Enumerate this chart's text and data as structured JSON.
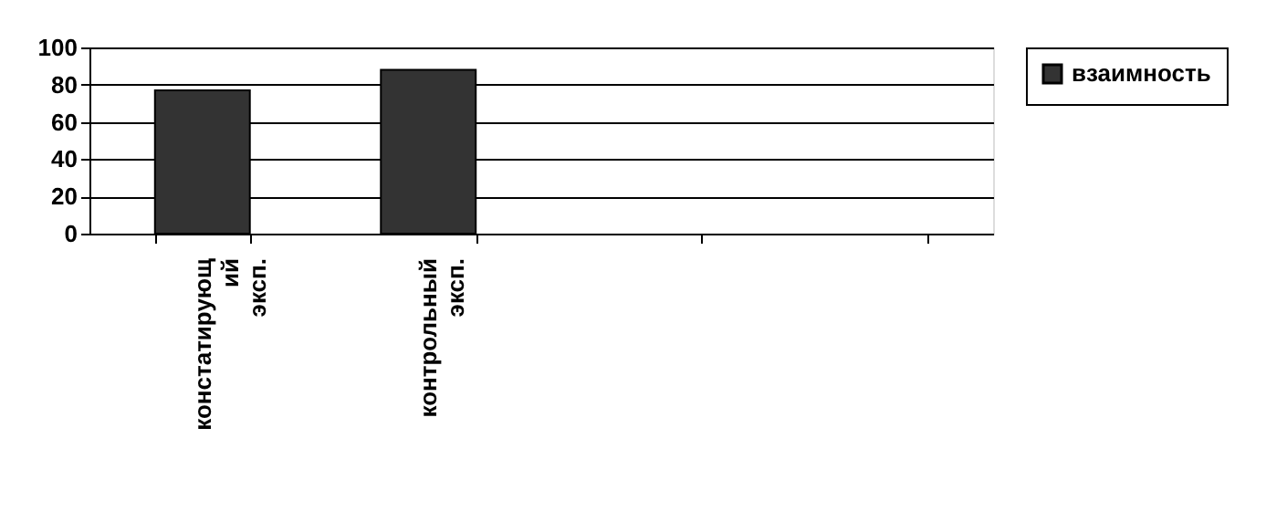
{
  "chart_data": {
    "type": "bar",
    "categories": [
      "констатирующий эксп.",
      "контрольный эксп.",
      null,
      null
    ],
    "series": [
      {
        "name": "взаимность",
        "color": "#333333",
        "values": [
          77,
          88,
          null,
          null
        ]
      }
    ],
    "ylim": [
      0,
      100
    ],
    "yticks": [
      0,
      20,
      40,
      60,
      80,
      100
    ],
    "grid": "y",
    "legend": "right"
  }
}
